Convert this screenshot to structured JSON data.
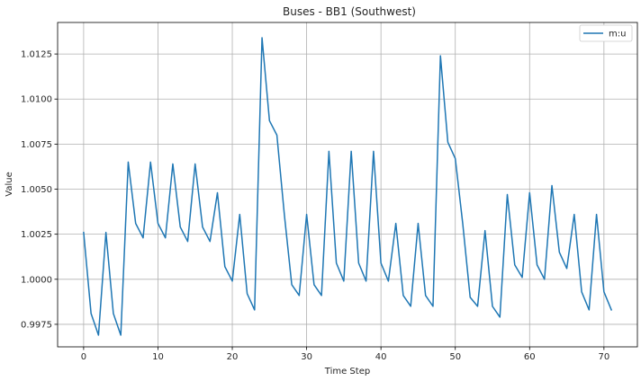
{
  "chart_data": {
    "type": "line",
    "title": "Buses - BB1 (Southwest)",
    "xlabel": "Time Step",
    "ylabel": "Value",
    "xlim": [
      -3.5,
      74.5
    ],
    "ylim": [
      0.99625,
      1.01425
    ],
    "xticks": [
      0,
      10,
      20,
      30,
      40,
      50,
      60,
      70
    ],
    "yticks": [
      0.9975,
      1.0,
      1.0025,
      1.005,
      1.0075,
      1.01,
      1.0125
    ],
    "ytick_labels": [
      "0.9975",
      "1.0000",
      "1.0025",
      "1.0050",
      "1.0075",
      "1.0100",
      "1.0125"
    ],
    "grid": true,
    "legend": "upper right",
    "series": [
      {
        "name": "m:u",
        "color": "#1f77b4",
        "x": [
          0,
          1,
          2,
          3,
          4,
          5,
          6,
          7,
          8,
          9,
          10,
          11,
          12,
          13,
          14,
          15,
          16,
          17,
          18,
          19,
          20,
          21,
          22,
          23,
          24,
          25,
          26,
          27,
          28,
          29,
          30,
          31,
          32,
          33,
          34,
          35,
          36,
          37,
          38,
          39,
          40,
          41,
          42,
          43,
          44,
          45,
          46,
          47,
          48,
          49,
          50,
          51,
          52,
          53,
          54,
          55,
          56,
          57,
          58,
          59,
          60,
          61,
          62,
          63,
          64,
          65,
          66,
          67,
          68,
          69,
          70,
          71
        ],
        "values": [
          1.0026,
          0.9981,
          0.9969,
          1.0026,
          0.9981,
          0.9969,
          1.0065,
          1.0031,
          1.0023,
          1.0065,
          1.0031,
          1.0023,
          1.0064,
          1.0029,
          1.0021,
          1.0064,
          1.0029,
          1.0021,
          1.0048,
          1.0007,
          0.9999,
          1.0036,
          0.9992,
          0.9983,
          1.0134,
          1.0088,
          1.008,
          1.0036,
          0.9997,
          0.9991,
          1.0036,
          0.9997,
          0.9991,
          1.0071,
          1.0009,
          0.9999,
          1.0071,
          1.0009,
          0.9999,
          1.0071,
          1.0009,
          0.9999,
          1.0031,
          0.9991,
          0.9985,
          1.0031,
          0.9991,
          0.9985,
          1.0124,
          1.0076,
          1.0067,
          1.0031,
          0.999,
          0.9985,
          1.0027,
          0.9985,
          0.9979,
          1.0047,
          1.0008,
          1.0001,
          1.0048,
          1.0008,
          1.0,
          1.0052,
          1.0015,
          1.0006,
          1.0036,
          0.9993,
          0.9983,
          1.0036,
          0.9993,
          0.9983
        ]
      }
    ]
  }
}
